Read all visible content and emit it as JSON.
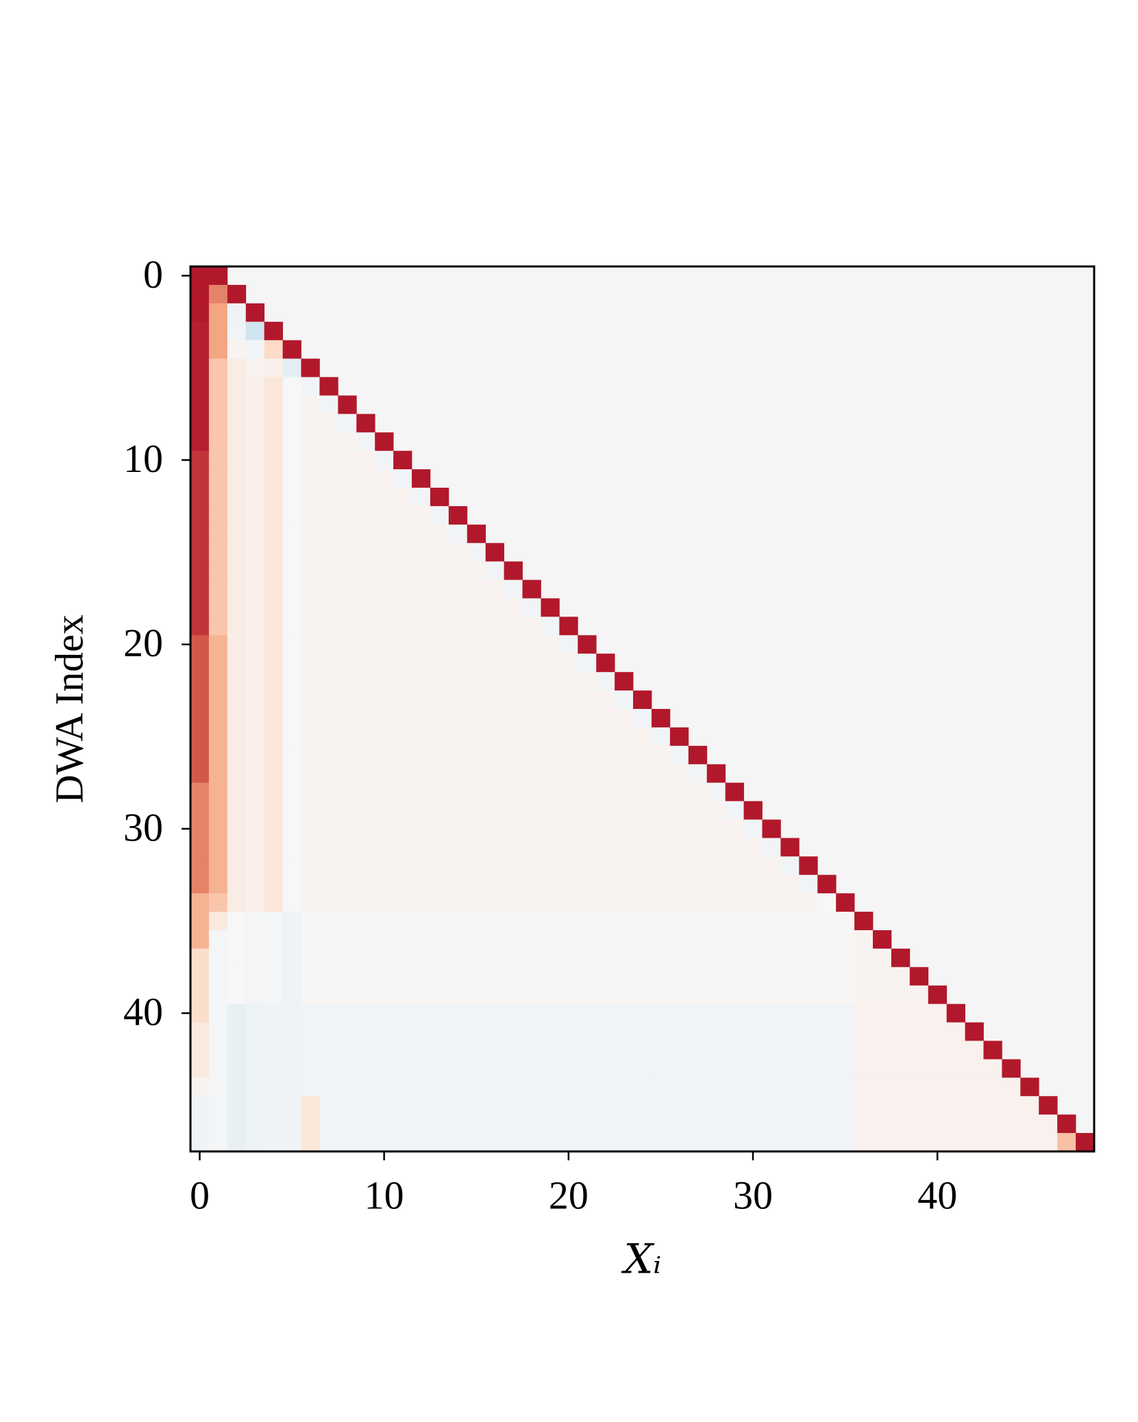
{
  "chart_data": {
    "type": "heatmap",
    "xlabel": "Xᵢ",
    "ylabel": "DWA Index",
    "xlim": [
      -0.5,
      48.5
    ],
    "ylim": [
      47.5,
      -0.5
    ],
    "xticks": [
      0,
      10,
      20,
      30,
      40
    ],
    "yticks": [
      0,
      10,
      20,
      30,
      40
    ],
    "colormap": "RdBu_r",
    "values": [
      [
        0.8,
        0.8
      ],
      [
        0.8,
        0.5,
        0.8
      ],
      [
        0.8,
        0.4,
        -0.05,
        0.8
      ],
      [
        0.78,
        0.4,
        -0.03,
        -0.2,
        0.8
      ],
      [
        0.78,
        0.4,
        0.03,
        -0.03,
        0.2,
        0.8
      ],
      [
        0.78,
        0.28,
        0.08,
        0.03,
        0.05,
        -0.1,
        0.8
      ],
      [
        0.78,
        0.28,
        0.08,
        0.05,
        0.12,
        0,
        -0.03,
        0.8
      ],
      [
        0.78,
        0.28,
        0.08,
        0.05,
        0.12,
        0,
        0.03,
        -0.03,
        0.8
      ],
      [
        0.78,
        0.28,
        0.08,
        0.05,
        0.12,
        0,
        0.03,
        0.03,
        -0.03,
        0.8
      ],
      [
        0.78,
        0.28,
        0.08,
        0.05,
        0.12,
        0,
        0.03,
        0.03,
        0.03,
        -0.03,
        0.8
      ],
      [
        0.72,
        0.28,
        0.08,
        0.05,
        0.12,
        0,
        0.03,
        0.03,
        0.03,
        0.03,
        -0.03,
        0.8
      ],
      [
        0.72,
        0.28,
        0.08,
        0.05,
        0.12,
        0,
        0.03,
        0.03,
        0.03,
        0.03,
        0.03,
        -0.03,
        0.8
      ],
      [
        0.72,
        0.28,
        0.08,
        0.05,
        0.12,
        0,
        0.03,
        0.03,
        0.03,
        0.03,
        0.03,
        0.03,
        -0.03,
        0.8
      ],
      [
        0.72,
        0.28,
        0.08,
        0.05,
        0.12,
        0,
        0.03,
        0.03,
        0.03,
        0.03,
        0.03,
        0.03,
        0.03,
        -0.03,
        0.8
      ],
      [
        0.72,
        0.28,
        0.08,
        0.05,
        0.12,
        0,
        0.03,
        0.03,
        0.03,
        0.03,
        0.03,
        0.03,
        0.03,
        0.03,
        -0.03,
        0.8
      ],
      [
        0.72,
        0.28,
        0.08,
        0.05,
        0.12,
        0,
        0.03,
        0.03,
        0.03,
        0.03,
        0.03,
        0.03,
        0.03,
        0.03,
        0.03,
        -0.03,
        0.8
      ],
      [
        0.72,
        0.28,
        0.08,
        0.05,
        0.12,
        0,
        0.03,
        0.03,
        0.03,
        0.03,
        0.03,
        0.03,
        0.03,
        0.03,
        0.03,
        0.03,
        -0.03,
        0.8
      ],
      [
        0.72,
        0.28,
        0.08,
        0.05,
        0.12,
        0,
        0.03,
        0.03,
        0.03,
        0.03,
        0.03,
        0.03,
        0.03,
        0.03,
        0.03,
        0.03,
        0.03,
        -0.03,
        0.8
      ],
      [
        0.72,
        0.28,
        0.08,
        0.05,
        0.12,
        0,
        0.03,
        0.03,
        0.03,
        0.03,
        0.03,
        0.03,
        0.03,
        0.03,
        0.03,
        0.03,
        0.03,
        0.03,
        -0.03,
        0.8
      ],
      [
        0.72,
        0.28,
        0.08,
        0.05,
        0.12,
        0,
        0.03,
        0.03,
        0.03,
        0.03,
        0.03,
        0.03,
        0.03,
        0.03,
        0.03,
        0.03,
        0.03,
        0.03,
        0.03,
        -0.03,
        0.8
      ],
      [
        0.62,
        0.35,
        0.08,
        0.05,
        0.12,
        0,
        0.03,
        0.03,
        0.03,
        0.03,
        0.03,
        0.03,
        0.03,
        0.03,
        0.03,
        0.03,
        0.03,
        0.03,
        0.03,
        0.03,
        -0.03,
        0.8
      ],
      [
        0.62,
        0.35,
        0.08,
        0.05,
        0.12,
        0,
        0.03,
        0.03,
        0.03,
        0.03,
        0.03,
        0.03,
        0.03,
        0.03,
        0.03,
        0.03,
        0.03,
        0.03,
        0.03,
        0.03,
        0.03,
        -0.03,
        0.8
      ],
      [
        0.62,
        0.35,
        0.08,
        0.05,
        0.12,
        0,
        0.03,
        0.03,
        0.03,
        0.03,
        0.03,
        0.03,
        0.03,
        0.03,
        0.03,
        0.03,
        0.03,
        0.03,
        0.03,
        0.03,
        0.03,
        0.03,
        -0.03,
        0.8
      ],
      [
        0.62,
        0.35,
        0.08,
        0.05,
        0.12,
        0,
        0.03,
        0.03,
        0.03,
        0.03,
        0.03,
        0.03,
        0.03,
        0.03,
        0.03,
        0.03,
        0.03,
        0.03,
        0.03,
        0.03,
        0.03,
        0.03,
        0.03,
        -0.03,
        0.8
      ],
      [
        0.62,
        0.35,
        0.08,
        0.05,
        0.12,
        0,
        0.03,
        0.03,
        0.03,
        0.03,
        0.03,
        0.03,
        0.03,
        0.03,
        0.03,
        0.03,
        0.03,
        0.03,
        0.03,
        0.03,
        0.03,
        0.03,
        0.03,
        0.03,
        -0.03,
        0.8
      ],
      [
        0.62,
        0.35,
        0.08,
        0.05,
        0.12,
        0,
        0.03,
        0.03,
        0.03,
        0.03,
        0.03,
        0.03,
        0.03,
        0.03,
        0.03,
        0.03,
        0.03,
        0.03,
        0.03,
        0.03,
        0.03,
        0.03,
        0.03,
        0.03,
        0.03,
        -0.03,
        0.8
      ],
      [
        0.62,
        0.35,
        0.08,
        0.05,
        0.12,
        0,
        0.03,
        0.03,
        0.03,
        0.03,
        0.03,
        0.03,
        0.03,
        0.03,
        0.03,
        0.03,
        0.03,
        0.03,
        0.03,
        0.03,
        0.03,
        0.03,
        0.03,
        0.03,
        0.03,
        0.03,
        -0.03,
        0.8
      ],
      [
        0.62,
        0.35,
        0.08,
        0.05,
        0.12,
        0,
        0.03,
        0.03,
        0.03,
        0.03,
        0.03,
        0.03,
        0.03,
        0.03,
        0.03,
        0.03,
        0.03,
        0.03,
        0.03,
        0.03,
        0.03,
        0.03,
        0.03,
        0.03,
        0.03,
        0.03,
        0.03,
        -0.03,
        0.8
      ],
      [
        0.5,
        0.35,
        0.08,
        0.05,
        0.12,
        0,
        0.03,
        0.03,
        0.03,
        0.03,
        0.03,
        0.03,
        0.03,
        0.03,
        0.03,
        0.03,
        0.03,
        0.03,
        0.03,
        0.03,
        0.03,
        0.03,
        0.03,
        0.03,
        0.03,
        0.03,
        0.03,
        0.03,
        -0.03,
        0.8
      ],
      [
        0.5,
        0.35,
        0.08,
        0.05,
        0.12,
        0,
        0.03,
        0.03,
        0.03,
        0.03,
        0.03,
        0.03,
        0.03,
        0.03,
        0.03,
        0.03,
        0.03,
        0.03,
        0.03,
        0.03,
        0.03,
        0.03,
        0.03,
        0.03,
        0.03,
        0.03,
        0.03,
        0.03,
        0.03,
        -0.03,
        0.8
      ],
      [
        0.5,
        0.35,
        0.08,
        0.05,
        0.12,
        0,
        0.03,
        0.03,
        0.03,
        0.03,
        0.03,
        0.03,
        0.03,
        0.03,
        0.03,
        0.03,
        0.03,
        0.03,
        0.03,
        0.03,
        0.03,
        0.03,
        0.03,
        0.03,
        0.03,
        0.03,
        0.03,
        0.03,
        0.03,
        0.03,
        -0.03,
        0.8
      ],
      [
        0.5,
        0.35,
        0.08,
        0.05,
        0.12,
        0,
        0.03,
        0.03,
        0.03,
        0.03,
        0.03,
        0.03,
        0.03,
        0.03,
        0.03,
        0.03,
        0.03,
        0.03,
        0.03,
        0.03,
        0.03,
        0.03,
        0.03,
        0.03,
        0.03,
        0.03,
        0.03,
        0.03,
        0.03,
        0.03,
        0.03,
        -0.03,
        0.8
      ],
      [
        0.5,
        0.35,
        0.08,
        0.05,
        0.12,
        0,
        0.03,
        0.03,
        0.03,
        0.03,
        0.03,
        0.03,
        0.03,
        0.03,
        0.03,
        0.03,
        0.03,
        0.03,
        0.03,
        0.03,
        0.03,
        0.03,
        0.03,
        0.03,
        0.03,
        0.03,
        0.03,
        0.03,
        0.03,
        0.03,
        0.03,
        0.03,
        -0.03,
        0.8
      ],
      [
        0.5,
        0.35,
        0.08,
        0.05,
        0.12,
        0,
        0.03,
        0.03,
        0.03,
        0.03,
        0.03,
        0.03,
        0.03,
        0.03,
        0.03,
        0.03,
        0.03,
        0.03,
        0.03,
        0.03,
        0.03,
        0.03,
        0.03,
        0.03,
        0.03,
        0.03,
        0.03,
        0.03,
        0.03,
        0.03,
        0.03,
        0.03,
        0.03,
        -0.03,
        0.8
      ],
      [
        0.35,
        0.28,
        0.08,
        0.05,
        0.12,
        0,
        0.03,
        0.03,
        0.03,
        0.03,
        0.03,
        0.03,
        0.03,
        0.03,
        0.03,
        0.03,
        0.03,
        0.03,
        0.03,
        0.03,
        0.03,
        0.03,
        0.03,
        0.03,
        0.03,
        0.03,
        0.03,
        0.03,
        0.03,
        0.03,
        0.03,
        0.03,
        0.03,
        0.03,
        0,
        0.8
      ],
      [
        0.35,
        0.1,
        0,
        -0.02,
        -0.02,
        -0.05,
        0.01,
        0.01,
        0.01,
        0.01,
        0.01,
        0.01,
        0.01,
        0.01,
        0.01,
        0.01,
        0.01,
        0.01,
        0.01,
        0.01,
        0.01,
        0.01,
        0.01,
        0.01,
        0.01,
        0.01,
        0.01,
        0.01,
        0.01,
        0.01,
        0.01,
        0.01,
        0.01,
        0.01,
        0.01,
        0.01,
        0.8
      ],
      [
        0.35,
        -0.02,
        0,
        -0.02,
        -0.02,
        -0.05,
        0.01,
        0.01,
        0.01,
        0.01,
        0.01,
        0.01,
        0.01,
        0.01,
        0.01,
        0.01,
        0.01,
        0.01,
        0.01,
        0.01,
        0.01,
        0.01,
        0.01,
        0.01,
        0.01,
        0.01,
        0.01,
        0.01,
        0.01,
        0.01,
        0.01,
        0.01,
        0.01,
        0.01,
        0.01,
        0.01,
        0.03,
        0.8
      ],
      [
        0.18,
        -0.02,
        0,
        -0.02,
        -0.02,
        -0.05,
        0.01,
        0.01,
        0.01,
        0.01,
        0.01,
        0.01,
        0.01,
        0.01,
        0.01,
        0.01,
        0.01,
        0.01,
        0.01,
        0.01,
        0.01,
        0.01,
        0.01,
        0.01,
        0.01,
        0.01,
        0.01,
        0.01,
        0.01,
        0.01,
        0.01,
        0.01,
        0.01,
        0.01,
        0.01,
        0.01,
        0.03,
        0.03,
        0.8
      ],
      [
        0.18,
        -0.02,
        0,
        -0.02,
        -0.02,
        -0.05,
        0.01,
        0.01,
        0.01,
        0.01,
        0.01,
        0.01,
        0.01,
        0.01,
        0.01,
        0.01,
        0.01,
        0.01,
        0.01,
        0.01,
        0.01,
        0.01,
        0.01,
        0.01,
        0.01,
        0.01,
        0.01,
        0.01,
        0.01,
        0.01,
        0.01,
        0.01,
        0.01,
        0.01,
        0.01,
        0.01,
        0.03,
        0.03,
        0.03,
        0.8
      ],
      [
        0.18,
        -0.02,
        0,
        -0.02,
        -0.02,
        -0.05,
        0.01,
        0.01,
        0.01,
        0.01,
        0.01,
        0.01,
        0.01,
        0.01,
        0.01,
        0.01,
        0.01,
        0.01,
        0.01,
        0.01,
        0.01,
        0.01,
        0.01,
        0.01,
        0.01,
        0.01,
        0.01,
        0.01,
        0.01,
        0.01,
        0.01,
        0.01,
        0.01,
        0.01,
        0.01,
        0.01,
        0.03,
        0.03,
        0.03,
        0.03,
        0.8
      ],
      [
        0.18,
        -0.02,
        -0.08,
        -0.06,
        -0.04,
        -0.05,
        -0.03,
        -0.03,
        -0.03,
        -0.03,
        -0.03,
        -0.03,
        -0.03,
        -0.03,
        -0.03,
        -0.03,
        -0.03,
        -0.03,
        -0.03,
        -0.03,
        -0.03,
        -0.03,
        -0.03,
        -0.03,
        -0.03,
        -0.03,
        -0.03,
        -0.03,
        -0.03,
        -0.03,
        -0.03,
        -0.03,
        -0.03,
        -0.03,
        -0.03,
        -0.03,
        0.04,
        0.04,
        0.04,
        0.04,
        0.04,
        0.8
      ],
      [
        0.1,
        -0.02,
        -0.08,
        -0.06,
        -0.04,
        -0.05,
        -0.03,
        -0.03,
        -0.03,
        -0.03,
        -0.03,
        -0.03,
        -0.03,
        -0.03,
        -0.03,
        -0.03,
        -0.03,
        -0.03,
        -0.03,
        -0.03,
        -0.03,
        -0.03,
        -0.03,
        -0.03,
        -0.03,
        -0.03,
        -0.03,
        -0.03,
        -0.03,
        -0.03,
        -0.03,
        -0.03,
        -0.03,
        -0.03,
        -0.03,
        -0.03,
        0.04,
        0.04,
        0.04,
        0.04,
        0.04,
        0.04,
        0.8
      ],
      [
        0.1,
        -0.02,
        -0.08,
        -0.06,
        -0.04,
        -0.05,
        -0.03,
        -0.03,
        -0.03,
        -0.03,
        -0.03,
        -0.03,
        -0.03,
        -0.03,
        -0.03,
        -0.03,
        -0.03,
        -0.03,
        -0.03,
        -0.03,
        -0.03,
        -0.03,
        -0.03,
        -0.03,
        -0.03,
        -0.03,
        -0.03,
        -0.03,
        -0.03,
        -0.03,
        -0.03,
        -0.03,
        -0.03,
        -0.03,
        -0.03,
        -0.03,
        0.04,
        0.04,
        0.04,
        0.04,
        0.04,
        0.04,
        0.04,
        0.8
      ],
      [
        0.1,
        -0.02,
        -0.08,
        -0.06,
        -0.04,
        -0.05,
        -0.03,
        -0.03,
        -0.03,
        -0.03,
        -0.03,
        -0.03,
        -0.03,
        -0.03,
        -0.03,
        -0.03,
        -0.03,
        -0.03,
        -0.03,
        -0.03,
        -0.03,
        -0.03,
        -0.03,
        -0.03,
        -0.03,
        -0.03,
        -0.03,
        -0.03,
        -0.03,
        -0.03,
        -0.03,
        -0.03,
        -0.03,
        -0.03,
        -0.03,
        -0.03,
        0.04,
        0.04,
        0.04,
        0.04,
        0.04,
        0.04,
        0.04,
        0.04,
        0.8
      ],
      [
        0.03,
        -0.02,
        -0.08,
        -0.06,
        -0.04,
        -0.05,
        -0.03,
        -0.03,
        -0.03,
        -0.03,
        -0.03,
        -0.03,
        -0.03,
        -0.03,
        -0.03,
        -0.03,
        -0.03,
        -0.03,
        -0.03,
        -0.03,
        -0.03,
        -0.03,
        -0.03,
        -0.03,
        -0.03,
        -0.03,
        -0.03,
        -0.03,
        -0.03,
        -0.03,
        -0.03,
        -0.03,
        -0.03,
        -0.03,
        -0.03,
        -0.03,
        0.04,
        0.04,
        0.04,
        0.04,
        0.04,
        0.04,
        0.04,
        0.04,
        0.04,
        0.8
      ],
      [
        -0.05,
        -0.02,
        -0.08,
        -0.06,
        -0.04,
        -0.05,
        0.12,
        -0.03,
        -0.03,
        -0.03,
        -0.03,
        -0.03,
        -0.03,
        -0.03,
        -0.03,
        -0.03,
        -0.03,
        -0.03,
        -0.03,
        -0.03,
        -0.03,
        -0.03,
        -0.03,
        -0.03,
        -0.03,
        -0.03,
        -0.03,
        -0.03,
        -0.03,
        -0.03,
        -0.03,
        -0.03,
        -0.03,
        -0.03,
        -0.03,
        -0.03,
        0.04,
        0.04,
        0.04,
        0.04,
        0.04,
        0.04,
        0.04,
        0.04,
        0.04,
        0.04,
        0.8
      ],
      [
        -0.05,
        -0.02,
        -0.08,
        -0.06,
        -0.04,
        -0.05,
        0.12,
        -0.03,
        -0.03,
        -0.03,
        -0.03,
        -0.03,
        -0.03,
        -0.03,
        -0.03,
        -0.03,
        -0.03,
        -0.03,
        -0.03,
        -0.03,
        -0.03,
        -0.03,
        -0.03,
        -0.03,
        -0.03,
        -0.03,
        -0.03,
        -0.03,
        -0.03,
        -0.03,
        -0.03,
        -0.03,
        -0.03,
        -0.03,
        -0.03,
        -0.03,
        0.04,
        0.04,
        0.04,
        0.04,
        0.04,
        0.04,
        0.04,
        0.04,
        0.04,
        0.04,
        0.04,
        0.8
      ],
      [
        -0.05,
        -0.02,
        -0.08,
        -0.06,
        -0.04,
        -0.05,
        0.12,
        -0.03,
        -0.03,
        -0.03,
        -0.03,
        -0.03,
        -0.03,
        -0.03,
        -0.03,
        -0.03,
        -0.03,
        -0.03,
        -0.03,
        -0.03,
        -0.03,
        -0.03,
        -0.03,
        -0.03,
        -0.03,
        -0.03,
        -0.03,
        -0.03,
        -0.03,
        -0.03,
        -0.03,
        -0.03,
        -0.03,
        -0.03,
        -0.03,
        -0.03,
        0.04,
        0.04,
        0.04,
        0.04,
        0.04,
        0.04,
        0.04,
        0.04,
        0.04,
        0.04,
        0.04,
        0.3,
        0.8
      ]
    ]
  }
}
